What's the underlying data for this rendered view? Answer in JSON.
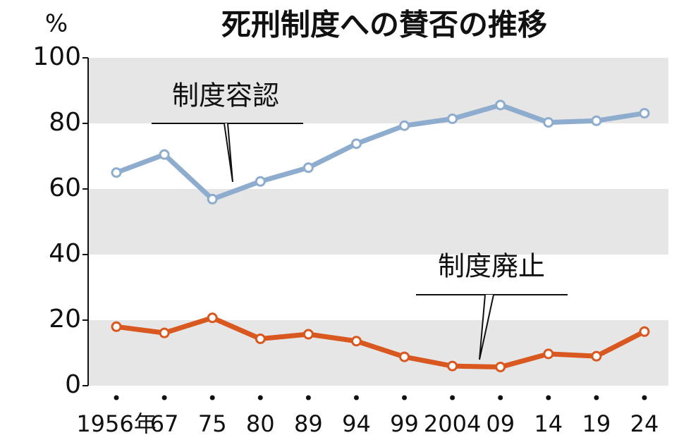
{
  "chart_data": {
    "type": "line",
    "title": "死刑制度への賛否の推移",
    "y_label": "%",
    "categories": [
      "1956年",
      "67",
      "75",
      "80",
      "89",
      "94",
      "99",
      "2004",
      "09",
      "14",
      "19",
      "24"
    ],
    "series": [
      {
        "name": "制度容認",
        "color": "#8eaccd",
        "values": [
          65.0,
          70.5,
          56.9,
          62.3,
          66.5,
          73.8,
          79.3,
          81.4,
          85.6,
          80.3,
          80.8,
          83.1
        ]
      },
      {
        "name": "制度廃止",
        "color": "#d8581f",
        "values": [
          18.0,
          16.1,
          20.7,
          14.3,
          15.7,
          13.6,
          8.8,
          6.0,
          5.7,
          9.7,
          9.0,
          16.5
        ]
      }
    ],
    "ylim": [
      0,
      100
    ],
    "yticks": [
      0,
      20,
      40,
      60,
      80,
      100
    ],
    "grid": true
  }
}
